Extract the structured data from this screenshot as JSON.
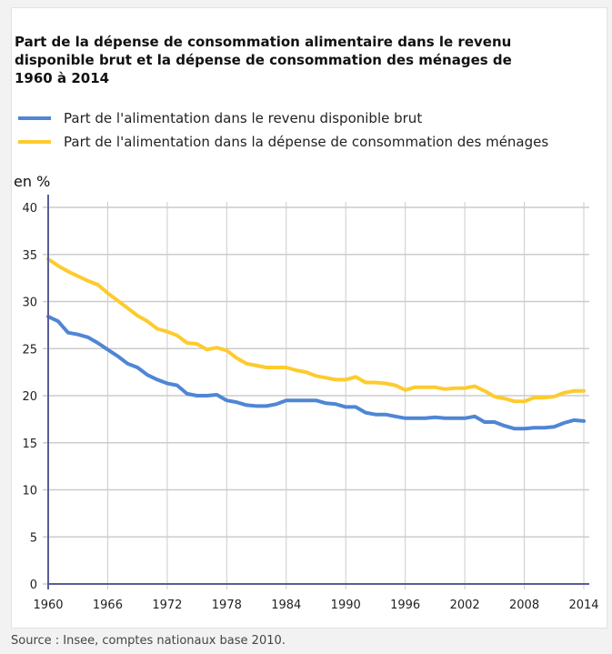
{
  "header": {
    "title": "Part de la dépense de consommation alimentaire dans le revenu disponible brut et la dépense de consommation des ménages de 1960 à 2014",
    "unit_label": "en %"
  },
  "footer": {
    "source": "Source : Insee, comptes nationaux base 2010."
  },
  "colors": {
    "series_blue": "#4f86d5",
    "series_yellow": "#fdcb2e",
    "axis": "#5a5c98",
    "grid": "#cccccc"
  },
  "chart_data": {
    "type": "line",
    "title": "Part de la dépense de consommation alimentaire dans le revenu disponible brut et la dépense de consommation des ménages de 1960 à 2014",
    "xlabel": "",
    "ylabel": "en %",
    "xlim": [
      1960,
      2014
    ],
    "ylim": [
      0,
      40
    ],
    "x_ticks": [
      "1960",
      "1966",
      "1972",
      "1978",
      "1984",
      "1990",
      "1996",
      "2002",
      "2008",
      "2014"
    ],
    "y_ticks": [
      "0",
      "5",
      "10",
      "15",
      "20",
      "25",
      "30",
      "35",
      "40"
    ],
    "grid": true,
    "legend_position": "top-left",
    "x": [
      1960,
      1961,
      1962,
      1963,
      1964,
      1965,
      1966,
      1967,
      1968,
      1969,
      1970,
      1971,
      1972,
      1973,
      1974,
      1975,
      1976,
      1977,
      1978,
      1979,
      1980,
      1981,
      1982,
      1983,
      1984,
      1985,
      1986,
      1987,
      1988,
      1989,
      1990,
      1991,
      1992,
      1993,
      1994,
      1995,
      1996,
      1997,
      1998,
      1999,
      2000,
      2001,
      2002,
      2003,
      2004,
      2005,
      2006,
      2007,
      2008,
      2009,
      2010,
      2011,
      2012,
      2013,
      2014
    ],
    "series": [
      {
        "name": "Part de l'alimentation dans le revenu disponible brut",
        "color": "#4f86d5",
        "values": [
          28.4,
          27.9,
          26.7,
          26.5,
          26.2,
          25.6,
          24.9,
          24.2,
          23.4,
          23.0,
          22.2,
          21.7,
          21.3,
          21.1,
          20.2,
          20.0,
          20.0,
          20.1,
          19.5,
          19.3,
          19.0,
          18.9,
          18.9,
          19.1,
          19.5,
          19.5,
          19.5,
          19.5,
          19.2,
          19.1,
          18.8,
          18.8,
          18.2,
          18.0,
          18.0,
          17.8,
          17.6,
          17.6,
          17.6,
          17.7,
          17.6,
          17.6,
          17.6,
          17.8,
          17.2,
          17.2,
          16.8,
          16.5,
          16.5,
          16.6,
          16.6,
          16.7,
          17.1,
          17.4,
          17.3
        ]
      },
      {
        "name": "Part de l'alimentation dans la dépense de consommation des ménages",
        "color": "#fdcb2e",
        "values": [
          34.5,
          33.8,
          33.2,
          32.7,
          32.2,
          31.8,
          30.9,
          30.1,
          29.3,
          28.5,
          27.9,
          27.1,
          26.8,
          26.4,
          25.6,
          25.5,
          24.9,
          25.1,
          24.8,
          24.0,
          23.4,
          23.2,
          23.0,
          23.0,
          23.0,
          22.7,
          22.5,
          22.1,
          21.9,
          21.7,
          21.7,
          22.0,
          21.4,
          21.4,
          21.3,
          21.1,
          20.6,
          20.9,
          20.9,
          20.9,
          20.7,
          20.8,
          20.8,
          21.0,
          20.5,
          19.9,
          19.7,
          19.4,
          19.4,
          19.8,
          19.8,
          19.9,
          20.3,
          20.5,
          20.5
        ]
      }
    ]
  }
}
